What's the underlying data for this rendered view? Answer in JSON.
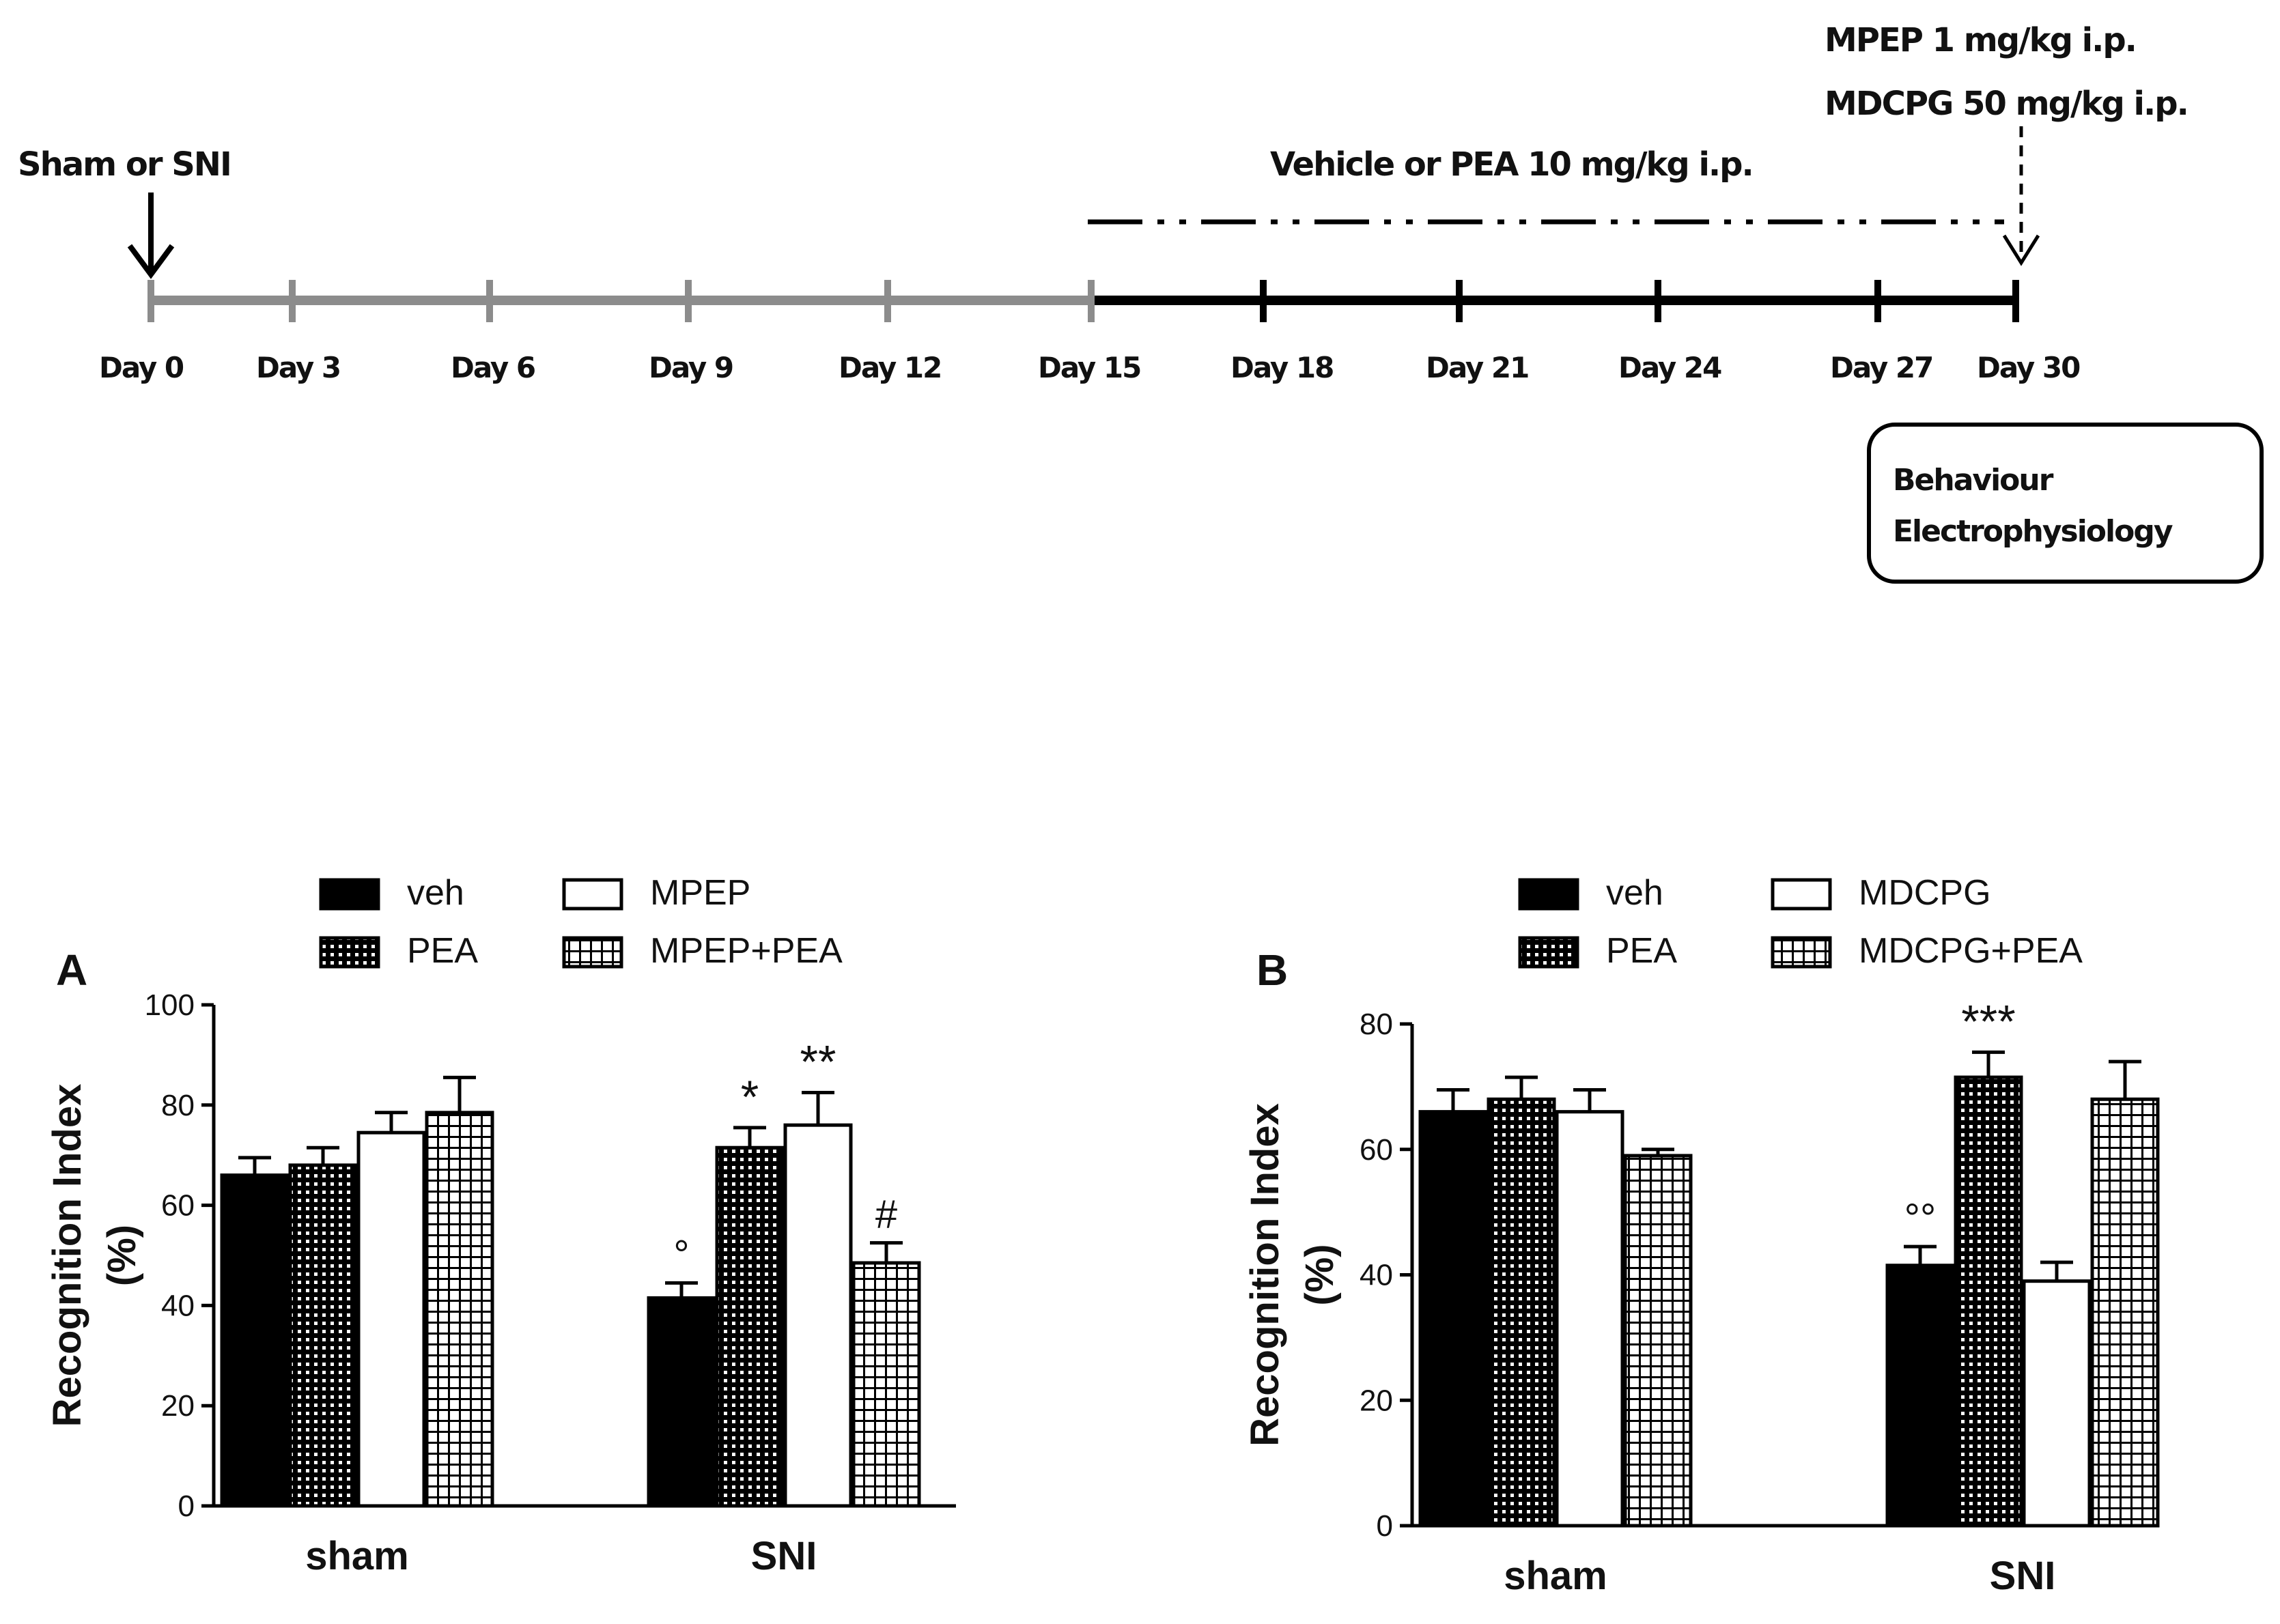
{
  "timeline": {
    "start_label": "Sham or SNI",
    "vehicle_label": "Vehicle or PEA 10 mg/kg i.p.",
    "drug_labels": [
      "MPEP 1 mg/kg i.p.",
      "MDCPG 50 mg/kg i.p."
    ],
    "days": [
      "Day 0",
      "Day 3",
      "Day 6",
      "Day 9",
      "Day 12",
      "Day 15",
      "Day 18",
      "Day 21",
      "Day 24",
      "Day 27",
      "Day 30"
    ],
    "outcome_box": [
      "Behaviour",
      "Electrophysiology"
    ],
    "colors": {
      "pre": "#8c8c8c",
      "post": "#000000"
    }
  },
  "chart_data": [
    {
      "type": "bar",
      "panel": "A",
      "title": "",
      "ylabel": "Recognition Index (%)",
      "ylabel_lines": [
        "Recognition Index",
        "(%)"
      ],
      "xlabel": "",
      "ylim": [
        0,
        100
      ],
      "yticks": [
        0,
        20,
        40,
        60,
        80,
        100
      ],
      "categories": [
        "sham",
        "SNI"
      ],
      "series": [
        {
          "name": "veh",
          "pattern": "solid",
          "values": [
            66,
            41.5
          ],
          "errors": [
            3.5,
            3
          ]
        },
        {
          "name": "PEA",
          "pattern": "dense",
          "values": [
            68,
            71.5
          ],
          "errors": [
            3.5,
            4
          ]
        },
        {
          "name": "MPEP",
          "pattern": "open",
          "values": [
            74.5,
            76
          ],
          "errors": [
            4,
            6.5
          ]
        },
        {
          "name": "MPEP+PEA",
          "pattern": "grid",
          "values": [
            78.5,
            48.5
          ],
          "errors": [
            7,
            4
          ]
        }
      ],
      "annotations": [
        {
          "category": "SNI",
          "series": "veh",
          "text": "°"
        },
        {
          "category": "SNI",
          "series": "PEA",
          "text": "*"
        },
        {
          "category": "SNI",
          "series": "MPEP",
          "text": "**"
        },
        {
          "category": "SNI",
          "series": "MPEP+PEA",
          "text": "#"
        }
      ],
      "legend_position": "top"
    },
    {
      "type": "bar",
      "panel": "B",
      "title": "",
      "ylabel": "Recognition Index (%)",
      "ylabel_lines": [
        "Recognition Index",
        "(%)"
      ],
      "xlabel": "",
      "ylim": [
        0,
        80
      ],
      "yticks": [
        0,
        20,
        40,
        60,
        80
      ],
      "categories": [
        "sham",
        "SNI"
      ],
      "series": [
        {
          "name": "veh",
          "pattern": "solid",
          "values": [
            66,
            41.5
          ],
          "errors": [
            3.5,
            3
          ]
        },
        {
          "name": "PEA",
          "pattern": "dense",
          "values": [
            68,
            71.5
          ],
          "errors": [
            3.5,
            4
          ]
        },
        {
          "name": "MDCPG",
          "pattern": "open",
          "values": [
            66,
            39
          ],
          "errors": [
            3.5,
            3
          ]
        },
        {
          "name": "MDCPG+PEA",
          "pattern": "grid",
          "values": [
            59,
            68
          ],
          "errors": [
            1,
            6
          ]
        }
      ],
      "annotations": [
        {
          "category": "SNI",
          "series": "veh",
          "text": "°°"
        },
        {
          "category": "SNI",
          "series": "PEA",
          "text": "***"
        }
      ],
      "legend_position": "top"
    }
  ]
}
